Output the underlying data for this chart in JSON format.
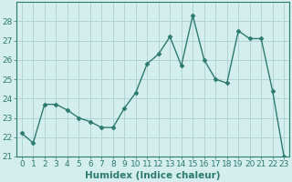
{
  "x": [
    0,
    1,
    2,
    3,
    4,
    5,
    6,
    7,
    8,
    9,
    10,
    11,
    12,
    13,
    14,
    15,
    16,
    17,
    18,
    19,
    20,
    21,
    22,
    23
  ],
  "y": [
    22.2,
    21.7,
    23.7,
    23.7,
    23.4,
    23.0,
    22.8,
    22.5,
    22.5,
    23.5,
    24.3,
    25.8,
    26.3,
    27.2,
    25.7,
    28.3,
    26.0,
    25.0,
    24.8,
    27.5,
    27.1,
    27.1,
    24.4,
    21.0
  ],
  "line_color": "#2d7a6e",
  "marker": "D",
  "marker_size": 2.5,
  "bg_color": "#d4eeee",
  "grid_color": "#b0d4d4",
  "xlabel": "Humidex (Indice chaleur)",
  "ylim": [
    21,
    29
  ],
  "xlim": [
    -0.5,
    23.5
  ],
  "yticks": [
    21,
    22,
    23,
    24,
    25,
    26,
    27,
    28
  ],
  "xticks": [
    0,
    1,
    2,
    3,
    4,
    5,
    6,
    7,
    8,
    9,
    10,
    11,
    12,
    13,
    14,
    15,
    16,
    17,
    18,
    19,
    20,
    21,
    22,
    23
  ],
  "tick_label_fontsize": 6.5,
  "xlabel_fontsize": 7.5,
  "line_width": 1.0
}
